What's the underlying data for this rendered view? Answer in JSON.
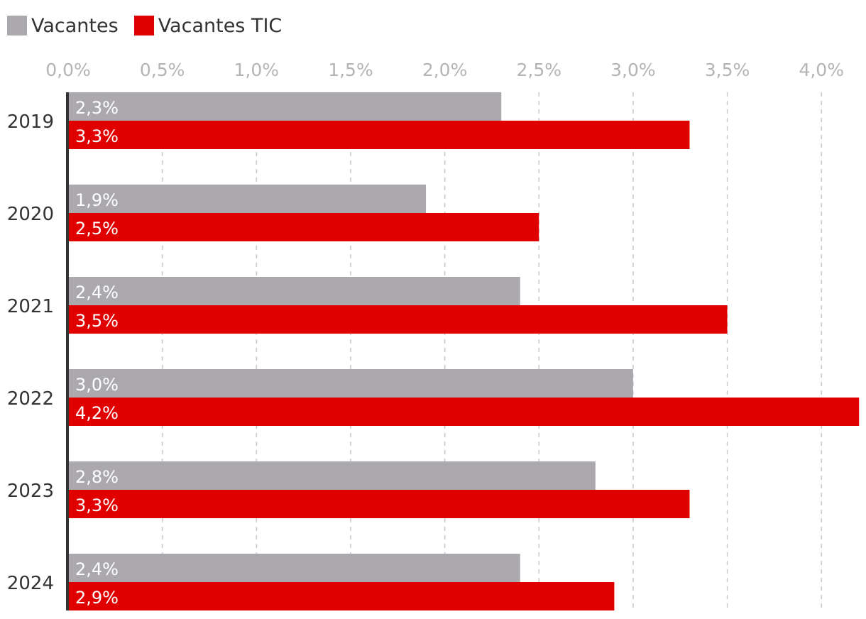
{
  "chart_data": {
    "type": "bar",
    "orientation": "horizontal",
    "categories": [
      "2019",
      "2020",
      "2021",
      "2022",
      "2023",
      "2024"
    ],
    "series": [
      {
        "name": "Vacantes",
        "values": [
          2.3,
          1.9,
          2.4,
          3.0,
          2.8,
          2.4
        ],
        "labels": [
          "2,3%",
          "1,9%",
          "2,4%",
          "3,0%",
          "2,8%",
          "2,4%"
        ],
        "color": "#aba9ad"
      },
      {
        "name": "Vacantes TIC",
        "values": [
          3.3,
          2.5,
          3.5,
          4.2,
          3.3,
          2.9
        ],
        "labels": [
          "3,3%",
          "2,5%",
          "3,5%",
          "4,2%",
          "3,3%",
          "2,9%"
        ],
        "color": "#e00000"
      }
    ],
    "x_ticks": [
      0,
      0.5,
      1.0,
      1.5,
      2.0,
      2.5,
      3.0,
      3.5,
      4.0
    ],
    "x_tick_labels": [
      "0,0%",
      "0,5%",
      "1,0%",
      "1,5%",
      "2,0%",
      "2,5%",
      "3,0%",
      "3,5%",
      "4,0%"
    ],
    "xlim": [
      0,
      4.2
    ],
    "xaxis_position": "top",
    "grid": "vertical dashed",
    "legend_position": "top-left"
  }
}
